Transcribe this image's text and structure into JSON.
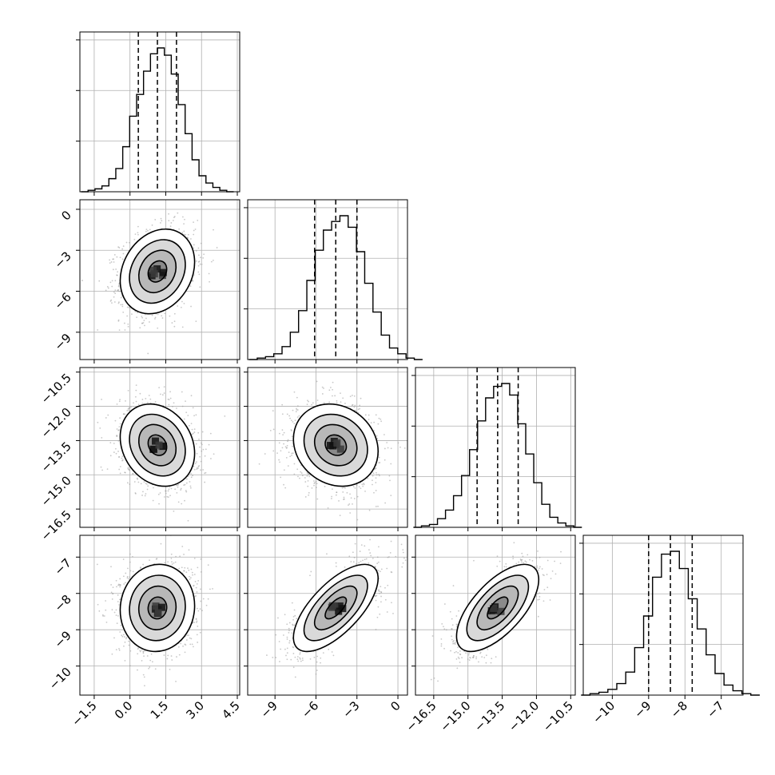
{
  "chart_data": {
    "type": "corner",
    "description_of_layout": "lower-triangular 4x4 grid of 1D histograms (diagonal) and 2D density contours with scatter (off-diagonal)",
    "parameters": [
      {
        "range": [
          -2.1,
          4.6
        ],
        "ticks": [
          -1.5,
          0.0,
          1.5,
          3.0,
          4.5
        ],
        "tick_labels": [
          "−1.5",
          "0.0",
          "1.5",
          "3.0",
          "4.5"
        ],
        "mean": 1.15,
        "sd": 0.78,
        "quantiles": [
          0.35,
          1.15,
          1.95
        ],
        "hist_counts": [
          0,
          1,
          2,
          4,
          9,
          16,
          31,
          52,
          67,
          83,
          95,
          99,
          94,
          81,
          60,
          40,
          22,
          11,
          6,
          3,
          1,
          0
        ]
      },
      {
        "range": [
          -11.0,
          0.7
        ],
        "ticks": [
          -9,
          -6,
          -3,
          0
        ],
        "tick_labels": [
          "−9",
          "−6",
          "−3",
          "0"
        ],
        "mean": -4.55,
        "sd": 1.55,
        "quantiles": [
          -6.1,
          -4.55,
          -3.0
        ],
        "hist_counts": [
          0,
          1,
          2,
          4,
          9,
          19,
          34,
          55,
          76,
          90,
          96,
          100,
          92,
          75,
          53,
          33,
          17,
          8,
          4,
          1,
          0
        ]
      },
      {
        "range": [
          -17.3,
          -10.3
        ],
        "ticks": [
          -16.5,
          -15.0,
          -13.5,
          -12.0,
          -10.5
        ],
        "tick_labels": [
          "−16.5",
          "−15.0",
          "−13.5",
          "−12.0",
          "−10.5"
        ],
        "mean": -13.7,
        "sd": 0.9,
        "quantiles": [
          -14.6,
          -13.7,
          -12.8
        ],
        "hist_counts": [
          0,
          1,
          2,
          6,
          12,
          22,
          36,
          54,
          74,
          90,
          98,
          100,
          92,
          72,
          51,
          31,
          16,
          7,
          3,
          1,
          0
        ]
      },
      {
        "range": [
          -10.8,
          -6.4
        ],
        "ticks": [
          -10,
          -9,
          -8,
          -7
        ],
        "tick_labels": [
          "−10",
          "−9",
          "−8",
          "−7"
        ],
        "mean": -8.4,
        "sd": 0.6,
        "quantiles": [
          -9.0,
          -8.4,
          -7.8
        ],
        "hist_counts": [
          0,
          1,
          2,
          4,
          8,
          16,
          33,
          55,
          82,
          98,
          100,
          88,
          67,
          46,
          28,
          15,
          7,
          3,
          1,
          0
        ]
      }
    ],
    "correlations": {
      "1_0": 0.22,
      "2_0": -0.2,
      "2_1": -0.15,
      "3_0": 0.05,
      "3_1": 0.68,
      "3_2": 0.65
    },
    "contour_levels_sigma": [
      0.5,
      1.0,
      1.5,
      2.0
    ],
    "grid": true
  }
}
